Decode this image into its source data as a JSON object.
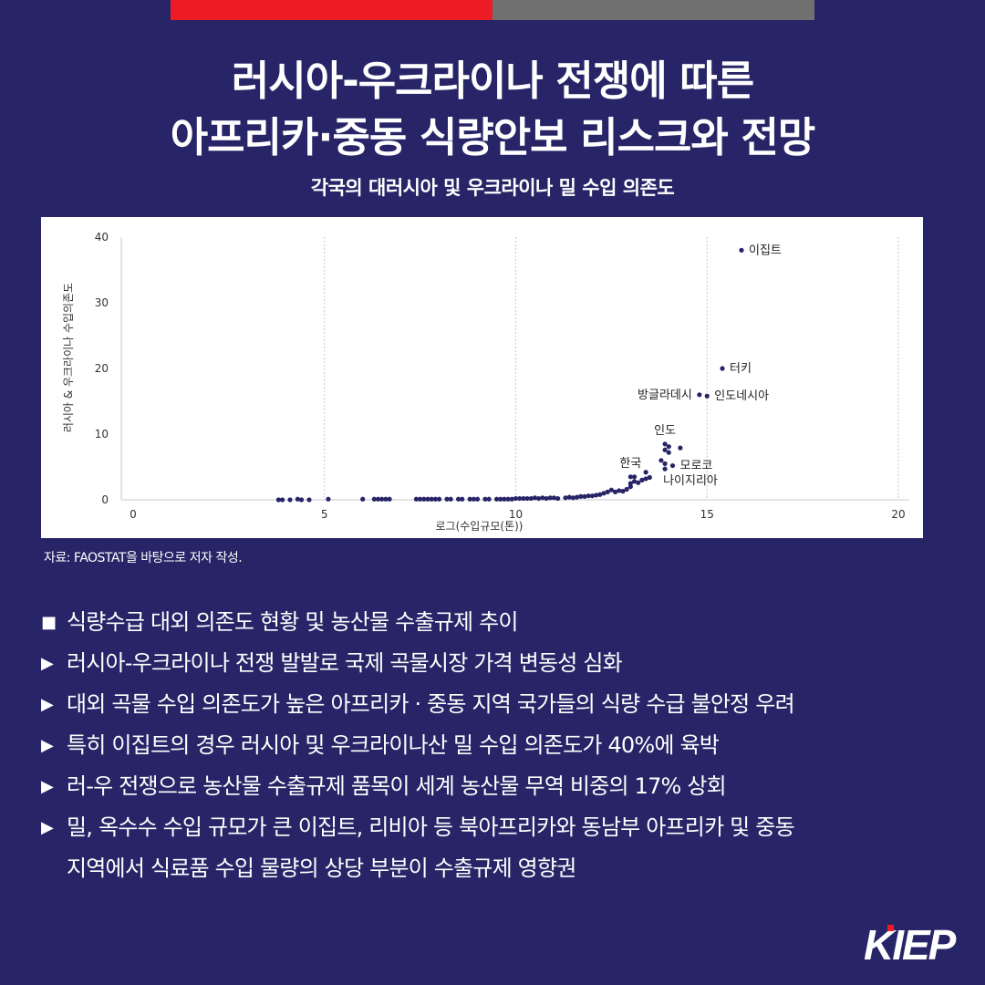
{
  "header": {
    "title_line1": "러시아-우크라이나 전쟁에 따른",
    "title_line2": "아프리카·중동 식량안보 리스크와 전망",
    "subtitle": "각국의 대러시아 및 우크라이나 밀 수입 의존도"
  },
  "chart_data": {
    "type": "scatter",
    "title": "각국의 대러시아 및 우크라이나 밀 수입 의존도",
    "xlabel": "로그(수입규모(톤))",
    "ylabel": "러시아 & 우크라이나 수입의존도",
    "xlim": [
      0,
      20
    ],
    "ylim": [
      0,
      40
    ],
    "x_ticks": [
      "0",
      "5",
      "10",
      "15",
      "20"
    ],
    "y_ticks": [
      "0",
      "10",
      "20",
      "30",
      "40"
    ],
    "grid": "vertical-dashed",
    "legend": "none",
    "point_color": "#272567",
    "labeled_points": [
      {
        "label": "이집트",
        "x": 15.9,
        "y": 38.0
      },
      {
        "label": "터키",
        "x": 15.4,
        "y": 20.0
      },
      {
        "label": "방글라데시",
        "x": 14.8,
        "y": 16.0
      },
      {
        "label": "인도네시아",
        "x": 15.0,
        "y": 15.8
      },
      {
        "label": "인도",
        "x": 13.9,
        "y": 8.5
      },
      {
        "label": "모로코",
        "x": 14.1,
        "y": 5.2
      },
      {
        "label": "나이지리아",
        "x": 13.9,
        "y": 4.7
      },
      {
        "label": "한국",
        "x": 13.0,
        "y": 3.5
      }
    ],
    "points": [
      [
        3.8,
        0.0
      ],
      [
        3.9,
        0.0
      ],
      [
        4.1,
        0.0
      ],
      [
        4.3,
        0.1
      ],
      [
        4.4,
        0.0
      ],
      [
        4.6,
        0.0
      ],
      [
        5.1,
        0.1
      ],
      [
        6.0,
        0.1
      ],
      [
        6.3,
        0.1
      ],
      [
        6.4,
        0.1
      ],
      [
        6.5,
        0.1
      ],
      [
        6.6,
        0.1
      ],
      [
        6.7,
        0.1
      ],
      [
        7.4,
        0.1
      ],
      [
        7.5,
        0.1
      ],
      [
        7.6,
        0.1
      ],
      [
        7.7,
        0.1
      ],
      [
        7.8,
        0.1
      ],
      [
        7.9,
        0.1
      ],
      [
        8.0,
        0.1
      ],
      [
        8.2,
        0.1
      ],
      [
        8.3,
        0.1
      ],
      [
        8.5,
        0.1
      ],
      [
        8.6,
        0.1
      ],
      [
        8.8,
        0.1
      ],
      [
        8.9,
        0.1
      ],
      [
        9.0,
        0.1
      ],
      [
        9.2,
        0.1
      ],
      [
        9.3,
        0.1
      ],
      [
        9.5,
        0.1
      ],
      [
        9.6,
        0.1
      ],
      [
        9.7,
        0.1
      ],
      [
        9.8,
        0.1
      ],
      [
        9.9,
        0.1
      ],
      [
        10.0,
        0.2
      ],
      [
        10.1,
        0.2
      ],
      [
        10.2,
        0.2
      ],
      [
        10.3,
        0.2
      ],
      [
        10.4,
        0.2
      ],
      [
        10.5,
        0.3
      ],
      [
        10.6,
        0.2
      ],
      [
        10.7,
        0.3
      ],
      [
        10.8,
        0.2
      ],
      [
        10.9,
        0.3
      ],
      [
        11.0,
        0.3
      ],
      [
        11.1,
        0.2
      ],
      [
        11.3,
        0.3
      ],
      [
        11.4,
        0.4
      ],
      [
        11.5,
        0.3
      ],
      [
        11.6,
        0.4
      ],
      [
        11.7,
        0.5
      ],
      [
        11.8,
        0.5
      ],
      [
        11.9,
        0.6
      ],
      [
        12.0,
        0.6
      ],
      [
        12.1,
        0.7
      ],
      [
        12.2,
        0.8
      ],
      [
        12.3,
        1.0
      ],
      [
        12.4,
        1.2
      ],
      [
        12.5,
        1.5
      ],
      [
        12.6,
        1.2
      ],
      [
        12.7,
        1.4
      ],
      [
        12.8,
        1.3
      ],
      [
        12.9,
        1.6
      ],
      [
        13.0,
        2.0
      ],
      [
        13.0,
        2.5
      ],
      [
        13.1,
        2.8
      ],
      [
        13.1,
        3.5
      ],
      [
        13.2,
        2.6
      ],
      [
        13.3,
        3.0
      ],
      [
        13.4,
        3.2
      ],
      [
        13.4,
        4.2
      ],
      [
        13.5,
        3.4
      ],
      [
        13.8,
        6.0
      ],
      [
        13.9,
        5.5
      ],
      [
        13.9,
        7.6
      ],
      [
        14.0,
        7.2
      ],
      [
        14.0,
        8.1
      ],
      [
        14.3,
        7.9
      ]
    ]
  },
  "source": "자료: FAOSTAT을 바탕으로 저자 작성.",
  "bullets": {
    "square_marker": "■",
    "triangle_marker": "▶",
    "items": [
      "식량수급 대외 의존도 현황 및 농산물 수출규제 추이",
      "러시아-우크라이나 전쟁 발발로 국제 곡물시장 가격 변동성 심화",
      "대외 곡물 수입 의존도가 높은 아프리카 · 중동 지역 국가들의 식량 수급 불안정 우려",
      "특히 이집트의 경우 러시아 및 우크라이나산 밀 수입 의존도가 40%에 육박",
      "러-우 전쟁으로 농산물 수출규제 품목이 세계 농산물 무역 비중의 17% 상회",
      "밀, 옥수수 수입 규모가 큰 이집트, 리비아 등 북아프리카와 동남부 아프리카 및 중동",
      "지역에서 식료품 수입 물량의 상당 부분이 수출규제 영향권"
    ]
  },
  "logo": {
    "text": "KIEP",
    "accent": "#ed1c24"
  }
}
